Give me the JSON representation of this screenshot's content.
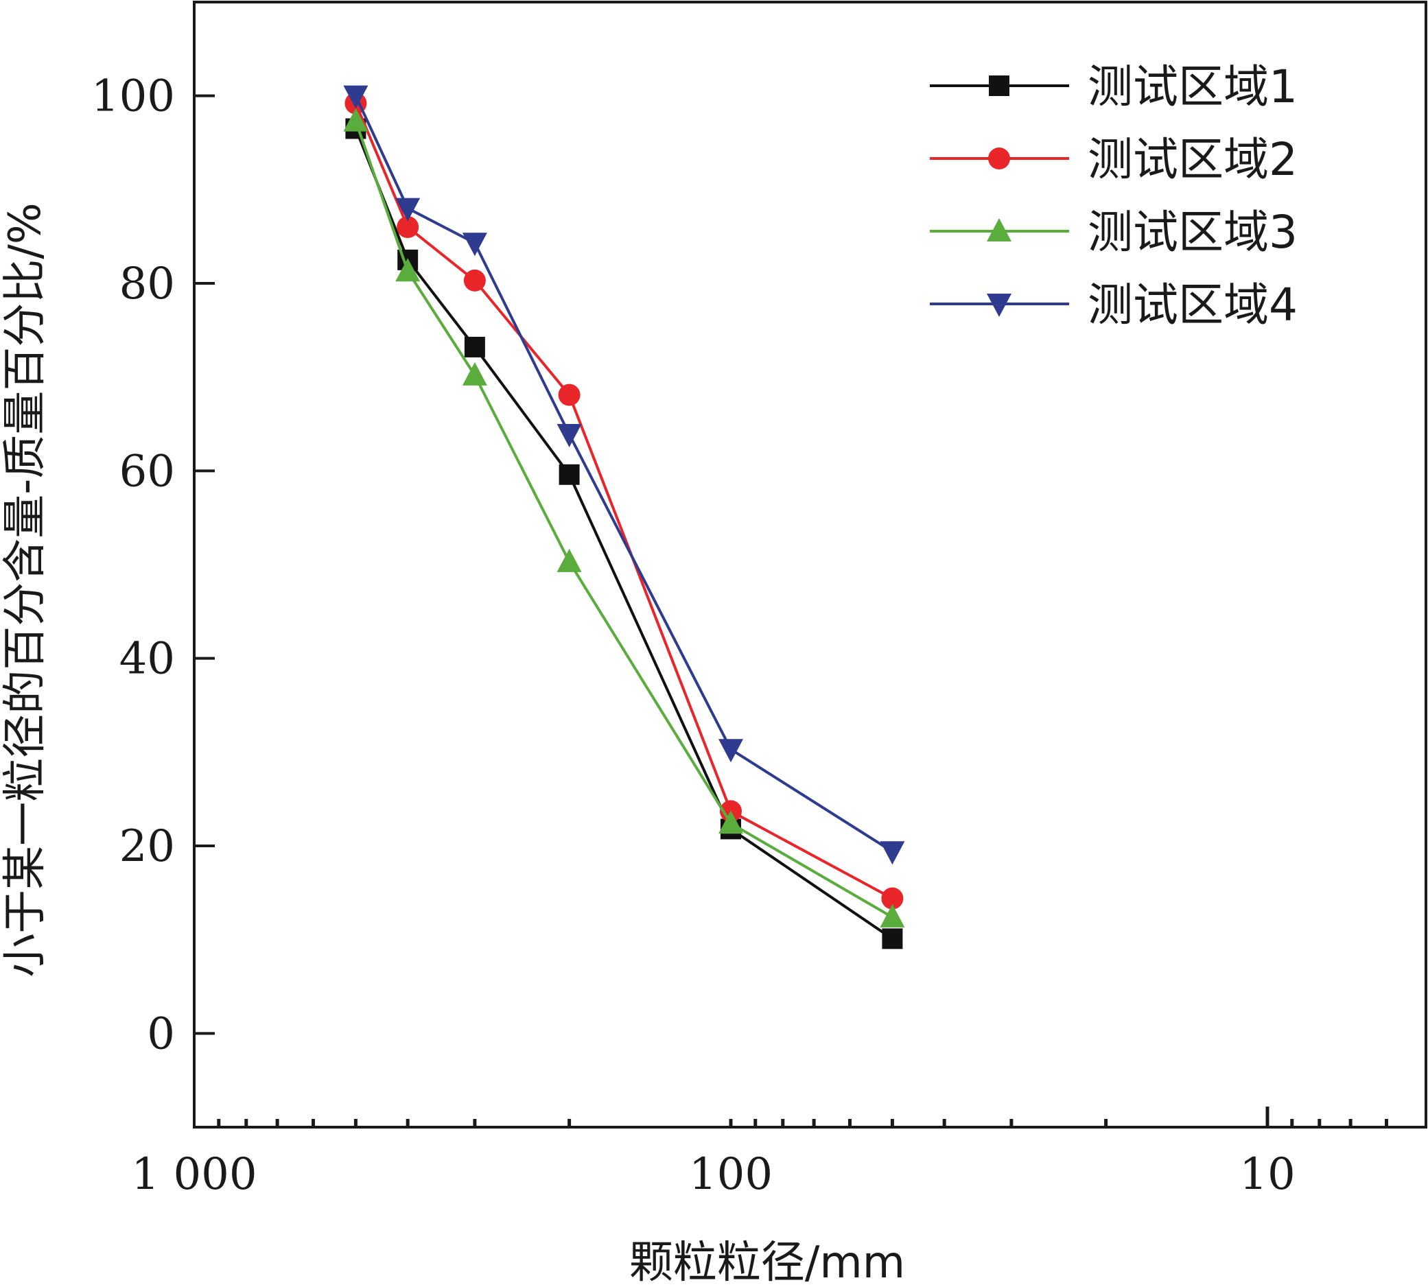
{
  "chart_data": {
    "type": "line",
    "xlabel": "颗粒粒径/mm",
    "ylabel": "小于某一粒径的百分含量-质量百分比/%",
    "x_scale": "log",
    "x_reversed": true,
    "xlim": [
      1000,
      5
    ],
    "ylim": [
      -10,
      110
    ],
    "x_ticks": [
      {
        "value": 1000,
        "label": "1 000"
      },
      {
        "value": 100,
        "label": "100"
      },
      {
        "value": 10,
        "label": "10"
      }
    ],
    "y_ticks": [
      {
        "value": 0,
        "label": "0"
      },
      {
        "value": 20,
        "label": "20"
      },
      {
        "value": 40,
        "label": "40"
      },
      {
        "value": 60,
        "label": "60"
      },
      {
        "value": 80,
        "label": "80"
      },
      {
        "value": 100,
        "label": "100"
      }
    ],
    "grid": false,
    "legend_position": "top-right",
    "x": [
      500,
      400,
      300,
      200,
      100,
      50
    ],
    "series": [
      {
        "name": "测试区域1",
        "marker": "square",
        "color": "#111111",
        "values": [
          96.5,
          82.5,
          73.2,
          59.6,
          21.8,
          10.1
        ]
      },
      {
        "name": "测试区域2",
        "marker": "circle",
        "color": "#e8262a",
        "values": [
          99.2,
          86.0,
          80.3,
          68.1,
          23.7,
          14.4
        ]
      },
      {
        "name": "测试区域3",
        "marker": "triangle-up",
        "color": "#5aad3c",
        "values": [
          97.3,
          81.3,
          70.2,
          50.3,
          22.4,
          12.4
        ]
      },
      {
        "name": "测试区域4",
        "marker": "triangle-down",
        "color": "#2e3b8f",
        "values": [
          100.0,
          88.0,
          84.3,
          63.9,
          30.3,
          19.4
        ]
      }
    ]
  }
}
